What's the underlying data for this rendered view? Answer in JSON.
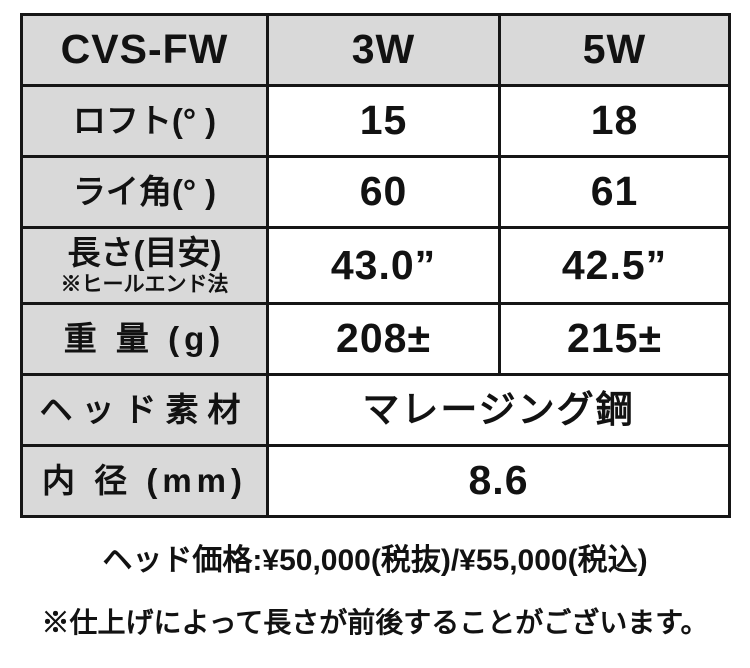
{
  "colors": {
    "header_bg": "#d9d9d9",
    "value_bg": "#ffffff",
    "border": "#161616",
    "text": "#121212"
  },
  "table": {
    "header": {
      "model": "CVS-FW",
      "club1": "3W",
      "club2": "5W"
    },
    "rows": {
      "loft": {
        "label": "ロフト(° )",
        "v1": "15",
        "v2": "18"
      },
      "lie": {
        "label": "ライ角(° )",
        "v1": "60",
        "v2": "61"
      },
      "length": {
        "label": "長さ(目安)",
        "sublabel": "※ヒールエンド法",
        "v1": "43.0”",
        "v2": "42.5”"
      },
      "weight": {
        "label": "重 量 (g)",
        "v1": "208±",
        "v2": "215±"
      },
      "material": {
        "label": "ヘッド素材",
        "value": "マレージング鋼"
      },
      "bore": {
        "label": "内 径 (mm)",
        "value": "8.6"
      }
    }
  },
  "footer": {
    "price_line": "ヘッド価格:¥50,000(税抜)/¥55,000(税込)",
    "note_line": "※仕上げによって長さが前後することがございます。"
  }
}
